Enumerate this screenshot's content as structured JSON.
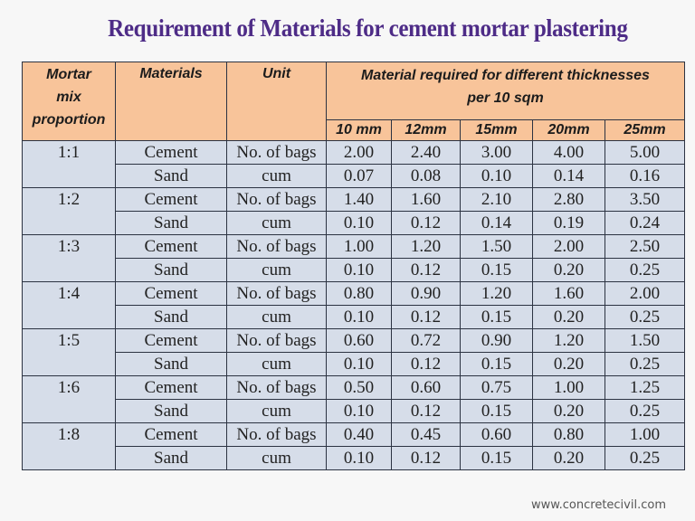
{
  "title": "Requirement of Materials for cement mortar plastering",
  "table": {
    "headers": {
      "mix": "Mortar mix proportion",
      "mix_lines": [
        "Mortar",
        "mix",
        "proportion"
      ],
      "materials": "Materials",
      "unit": "Unit",
      "group": "Material required for different thicknesses per 10 sqm",
      "group_lines": [
        "Material required for different thicknesses",
        "per 10 sqm"
      ],
      "thicknesses": [
        "10 mm",
        "12mm",
        "15mm",
        "20mm",
        "25mm"
      ]
    },
    "groups": [
      {
        "mix": "1:1",
        "rows": [
          {
            "material": "Cement",
            "unit": "No. of bags",
            "values": [
              "2.00",
              "2.40",
              "3.00",
              "4.00",
              "5.00"
            ]
          },
          {
            "material": "Sand",
            "unit": "cum",
            "values": [
              "0.07",
              "0.08",
              "0.10",
              "0.14",
              "0.16"
            ]
          }
        ]
      },
      {
        "mix": "1:2",
        "rows": [
          {
            "material": "Cement",
            "unit": "No. of bags",
            "values": [
              "1.40",
              "1.60",
              "2.10",
              "2.80",
              "3.50"
            ]
          },
          {
            "material": "Sand",
            "unit": "cum",
            "values": [
              "0.10",
              "0.12",
              "0.14",
              "0.19",
              "0.24"
            ]
          }
        ]
      },
      {
        "mix": "1:3",
        "rows": [
          {
            "material": "Cement",
            "unit": "No. of bags",
            "values": [
              "1.00",
              "1.20",
              "1.50",
              "2.00",
              "2.50"
            ]
          },
          {
            "material": "Sand",
            "unit": "cum",
            "values": [
              "0.10",
              "0.12",
              "0.15",
              "0.20",
              "0.25"
            ]
          }
        ]
      },
      {
        "mix": "1:4",
        "rows": [
          {
            "material": "Cement",
            "unit": "No. of bags",
            "values": [
              "0.80",
              "0.90",
              "1.20",
              "1.60",
              "2.00"
            ]
          },
          {
            "material": "Sand",
            "unit": "cum",
            "values": [
              "0.10",
              "0.12",
              "0.15",
              "0.20",
              "0.25"
            ]
          }
        ]
      },
      {
        "mix": "1:5",
        "rows": [
          {
            "material": "Cement",
            "unit": "No. of bags",
            "values": [
              "0.60",
              "0.72",
              "0.90",
              "1.20",
              "1.50"
            ]
          },
          {
            "material": "Sand",
            "unit": "cum",
            "values": [
              "0.10",
              "0.12",
              "0.15",
              "0.20",
              "0.25"
            ]
          }
        ]
      },
      {
        "mix": "1:6",
        "rows": [
          {
            "material": "Cement",
            "unit": "No. of bags",
            "values": [
              "0.50",
              "0.60",
              "0.75",
              "1.00",
              "1.25"
            ]
          },
          {
            "material": "Sand",
            "unit": "cum",
            "values": [
              "0.10",
              "0.12",
              "0.15",
              "0.20",
              "0.25"
            ]
          }
        ]
      },
      {
        "mix": "1:8",
        "rows": [
          {
            "material": "Cement",
            "unit": "No. of bags",
            "values": [
              "0.40",
              "0.45",
              "0.60",
              "0.80",
              "1.00"
            ]
          },
          {
            "material": "Sand",
            "unit": "cum",
            "values": [
              "0.10",
              "0.12",
              "0.15",
              "0.20",
              "0.25"
            ]
          }
        ]
      }
    ]
  },
  "footer": "www.concretecivil.com",
  "colors": {
    "title": "#4e2c87",
    "header_bg": "#f8c49a",
    "cell_bg": "#d6dde9",
    "border": "#2c3342"
  }
}
